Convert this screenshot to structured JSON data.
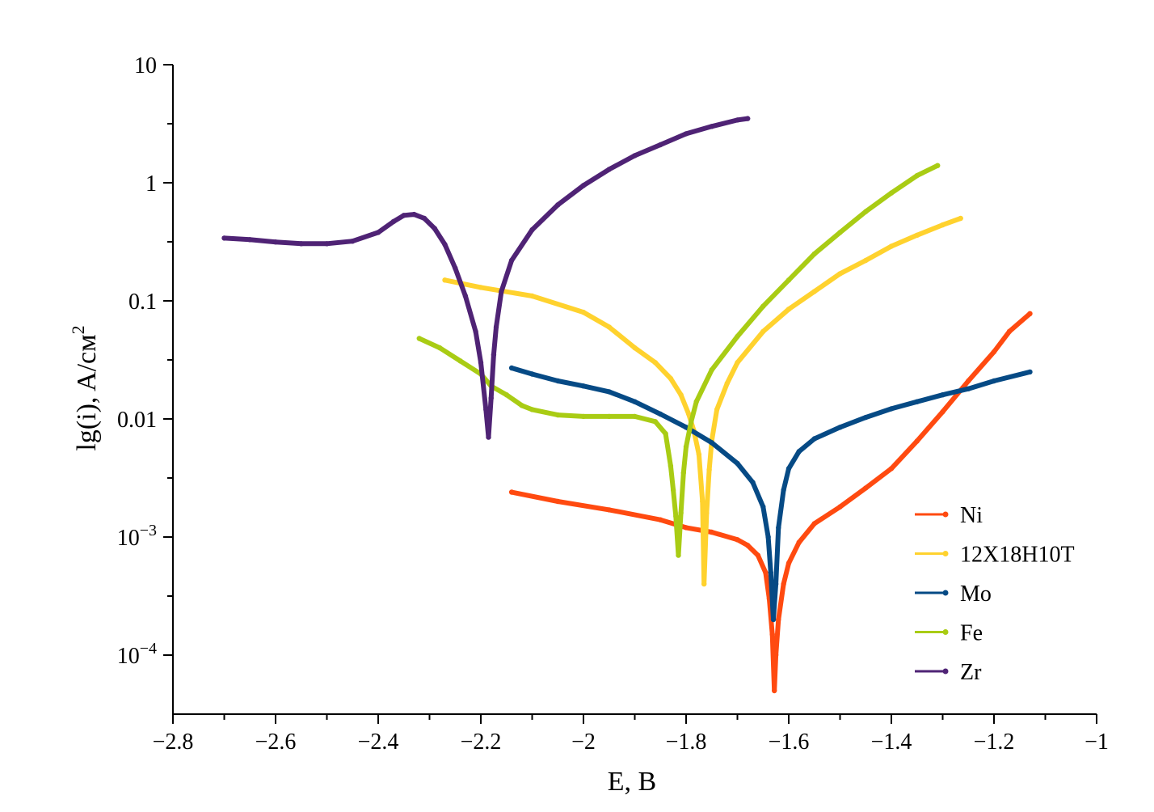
{
  "chart_data": {
    "type": "line",
    "title": "",
    "xlabel": "E, B",
    "ylabel": "lg(i), A/см",
    "ylabel_sup": "2",
    "xlim": [
      -2.8,
      -1.0
    ],
    "ylim_log10": [
      -4.5,
      1
    ],
    "y_scale": "log",
    "x_ticks": [
      -2.8,
      -2.6,
      -2.4,
      -2.2,
      -2.0,
      -1.8,
      -1.6,
      -1.4,
      -1.2,
      -1.0
    ],
    "x_tick_labels": [
      "−2.8",
      "−2.6",
      "−2.4",
      "−2.2",
      "−2",
      "−1.8",
      "−1.6",
      "−1.4",
      "−1.2",
      "−1"
    ],
    "y_ticks": [
      {
        "exp": 1,
        "label": "10"
      },
      {
        "exp": 0,
        "label": "1"
      },
      {
        "exp": -1,
        "label": "0.1"
      },
      {
        "exp": -2,
        "label": "0.01"
      },
      {
        "exp": -3,
        "base": "10",
        "sup": "−3"
      },
      {
        "exp": -4,
        "base": "10",
        "sup": "−4"
      }
    ],
    "legend_position": "lower-right",
    "series": [
      {
        "name": "Ni",
        "color": "#ff4a10",
        "x": [
          -2.14,
          -2.05,
          -1.95,
          -1.85,
          -1.8,
          -1.75,
          -1.7,
          -1.68,
          -1.66,
          -1.645,
          -1.638,
          -1.632,
          -1.628,
          -1.625,
          -1.62,
          -1.61,
          -1.6,
          -1.58,
          -1.55,
          -1.5,
          -1.45,
          -1.4,
          -1.35,
          -1.3,
          -1.25,
          -1.2,
          -1.17,
          -1.13
        ],
        "y": [
          0.0024,
          0.002,
          0.0017,
          0.0014,
          0.0012,
          0.0011,
          0.00095,
          0.00085,
          0.0007,
          0.0005,
          0.0003,
          0.00015,
          5e-05,
          0.0001,
          0.0002,
          0.0004,
          0.0006,
          0.0009,
          0.0013,
          0.0018,
          0.0026,
          0.0038,
          0.0065,
          0.0115,
          0.021,
          0.037,
          0.055,
          0.078
        ]
      },
      {
        "name": "12X18H10T",
        "color": "#ffd22e",
        "x": [
          -2.27,
          -2.2,
          -2.1,
          -2.0,
          -1.95,
          -1.9,
          -1.86,
          -1.83,
          -1.81,
          -1.795,
          -1.785,
          -1.775,
          -1.768,
          -1.765,
          -1.76,
          -1.755,
          -1.75,
          -1.74,
          -1.72,
          -1.7,
          -1.65,
          -1.6,
          -1.55,
          -1.5,
          -1.45,
          -1.4,
          -1.35,
          -1.3,
          -1.265
        ],
        "y": [
          0.15,
          0.13,
          0.11,
          0.08,
          0.06,
          0.04,
          0.03,
          0.022,
          0.016,
          0.011,
          0.008,
          0.005,
          0.002,
          0.0004,
          0.0016,
          0.0037,
          0.0065,
          0.012,
          0.02,
          0.03,
          0.055,
          0.085,
          0.12,
          0.17,
          0.22,
          0.29,
          0.36,
          0.44,
          0.5
        ]
      },
      {
        "name": "Mo",
        "color": "#064a85",
        "x": [
          -2.14,
          -2.1,
          -2.05,
          -2.0,
          -1.95,
          -1.9,
          -1.85,
          -1.8,
          -1.75,
          -1.7,
          -1.67,
          -1.65,
          -1.64,
          -1.635,
          -1.63,
          -1.625,
          -1.62,
          -1.61,
          -1.6,
          -1.58,
          -1.55,
          -1.5,
          -1.45,
          -1.4,
          -1.35,
          -1.3,
          -1.25,
          -1.2,
          -1.13
        ],
        "y": [
          0.027,
          0.024,
          0.021,
          0.019,
          0.017,
          0.014,
          0.011,
          0.0085,
          0.0063,
          0.0042,
          0.0029,
          0.0018,
          0.001,
          0.0005,
          0.0002,
          0.0004,
          0.0012,
          0.0025,
          0.0038,
          0.0053,
          0.0068,
          0.0085,
          0.0103,
          0.0122,
          0.014,
          0.016,
          0.018,
          0.021,
          0.025
        ]
      },
      {
        "name": "Fe",
        "color": "#a9cc14",
        "x": [
          -2.32,
          -2.28,
          -2.24,
          -2.2,
          -2.18,
          -2.15,
          -2.12,
          -2.1,
          -2.05,
          -2.0,
          -1.95,
          -1.9,
          -1.86,
          -1.84,
          -1.83,
          -1.825,
          -1.82,
          -1.815,
          -1.81,
          -1.805,
          -1.8,
          -1.79,
          -1.78,
          -1.75,
          -1.7,
          -1.65,
          -1.6,
          -1.55,
          -1.5,
          -1.45,
          -1.4,
          -1.35,
          -1.31
        ],
        "y": [
          0.048,
          0.04,
          0.031,
          0.024,
          0.019,
          0.016,
          0.013,
          0.012,
          0.0108,
          0.0105,
          0.0105,
          0.0105,
          0.0095,
          0.0075,
          0.004,
          0.0025,
          0.0015,
          0.0007,
          0.0016,
          0.0035,
          0.0058,
          0.0095,
          0.014,
          0.026,
          0.05,
          0.09,
          0.15,
          0.25,
          0.38,
          0.57,
          0.82,
          1.15,
          1.4
        ]
      },
      {
        "name": "Zr",
        "color": "#4f2375",
        "x": [
          -2.7,
          -2.65,
          -2.6,
          -2.55,
          -2.5,
          -2.45,
          -2.4,
          -2.37,
          -2.35,
          -2.33,
          -2.31,
          -2.29,
          -2.27,
          -2.25,
          -2.23,
          -2.21,
          -2.2,
          -2.19,
          -2.185,
          -2.18,
          -2.175,
          -2.17,
          -2.16,
          -2.14,
          -2.1,
          -2.05,
          -2.0,
          -1.95,
          -1.9,
          -1.85,
          -1.8,
          -1.75,
          -1.7,
          -1.68
        ],
        "y": [
          0.34,
          0.33,
          0.315,
          0.305,
          0.305,
          0.32,
          0.38,
          0.47,
          0.53,
          0.54,
          0.5,
          0.41,
          0.3,
          0.19,
          0.11,
          0.055,
          0.03,
          0.012,
          0.007,
          0.015,
          0.035,
          0.06,
          0.12,
          0.22,
          0.4,
          0.65,
          0.95,
          1.3,
          1.7,
          2.1,
          2.6,
          3.0,
          3.4,
          3.5
        ]
      }
    ]
  }
}
